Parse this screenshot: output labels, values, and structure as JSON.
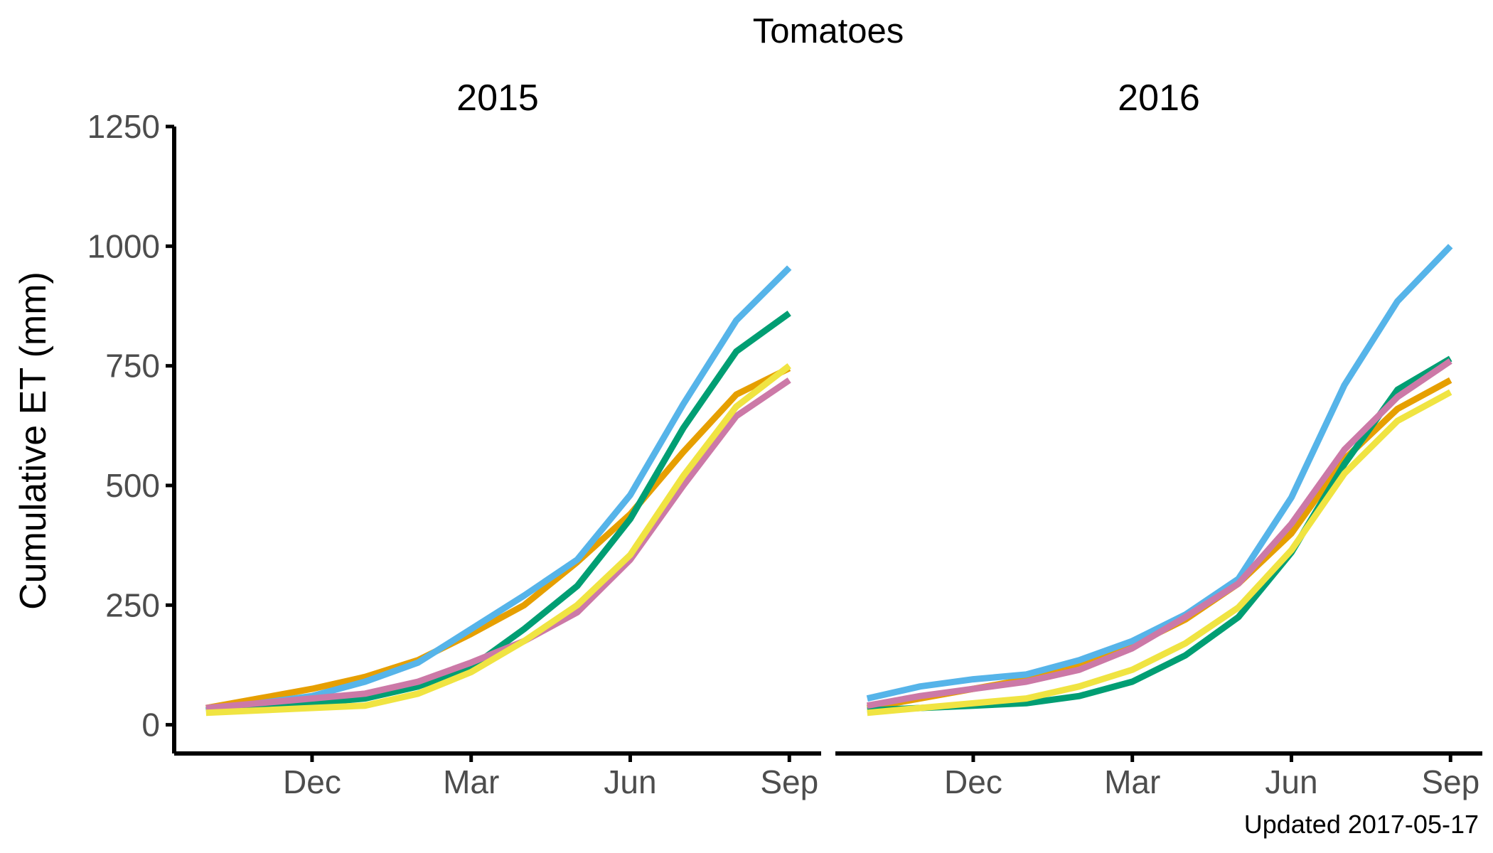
{
  "chart_data": {
    "type": "line",
    "title": "Tomatoes",
    "ylabel": "Cumulative ET (mm)",
    "xlabel": "",
    "ylim": [
      -60,
      1250
    ],
    "yticks": [
      "0",
      "250",
      "500",
      "750",
      "1000",
      "1250"
    ],
    "ytick_values": [
      0,
      250,
      500,
      750,
      1000,
      1250
    ],
    "caption": "Updated  2017-05-17",
    "grid": false,
    "legend": "none",
    "panels": [
      {
        "title": "2015",
        "xticks": [
          "Dec",
          "Mar",
          "Jun",
          "Sep"
        ],
        "xtick_months": [
          2,
          5,
          8,
          11
        ],
        "xlim": [
          -0.6,
          11.6
        ],
        "x": [
          0,
          1,
          2,
          3,
          4,
          5,
          6,
          7,
          8,
          9,
          10,
          11
        ],
        "series": [
          {
            "color": "#E69F00",
            "values": [
              35,
              55,
              75,
              100,
              135,
              190,
              250,
              340,
              440,
              570,
              690,
              745
            ]
          },
          {
            "color": "#56B4E9",
            "values": [
              30,
              45,
              60,
              90,
              130,
              200,
              270,
              345,
              480,
              670,
              845,
              955
            ]
          },
          {
            "color": "#009E73",
            "values": [
              30,
              40,
              45,
              55,
              80,
              120,
              200,
              290,
              430,
              620,
              780,
              860
            ]
          },
          {
            "color": "#CC79A7",
            "values": [
              35,
              45,
              55,
              65,
              90,
              130,
              175,
              235,
              345,
              500,
              645,
              720
            ]
          },
          {
            "color": "#F0E442",
            "values": [
              25,
              30,
              35,
              40,
              65,
              110,
              175,
              250,
              355,
              520,
              665,
              750
            ]
          }
        ]
      },
      {
        "title": "2016",
        "xticks": [
          "Dec",
          "Mar",
          "Jun",
          "Sep"
        ],
        "xtick_months": [
          2,
          5,
          8,
          11
        ],
        "xlim": [
          -0.6,
          11.6
        ],
        "x": [
          0,
          1,
          2,
          3,
          4,
          5,
          6,
          7,
          8,
          9,
          10,
          11
        ],
        "series": [
          {
            "color": "#E69F00",
            "values": [
              35,
              55,
              75,
              95,
              125,
              165,
              220,
              295,
              400,
              555,
              660,
              720
            ]
          },
          {
            "color": "#56B4E9",
            "values": [
              55,
              80,
              95,
              105,
              135,
              175,
              230,
              305,
              475,
              710,
              885,
              1000
            ]
          },
          {
            "color": "#009E73",
            "values": [
              30,
              35,
              40,
              45,
              60,
              90,
              145,
              225,
              360,
              545,
              700,
              765
            ]
          },
          {
            "color": "#CC79A7",
            "values": [
              40,
              60,
              75,
              90,
              115,
              160,
              225,
              295,
              420,
              575,
              685,
              760
            ]
          },
          {
            "color": "#F0E442",
            "values": [
              25,
              35,
              45,
              55,
              80,
              115,
              170,
              245,
              365,
              525,
              635,
              695
            ]
          }
        ]
      }
    ]
  }
}
